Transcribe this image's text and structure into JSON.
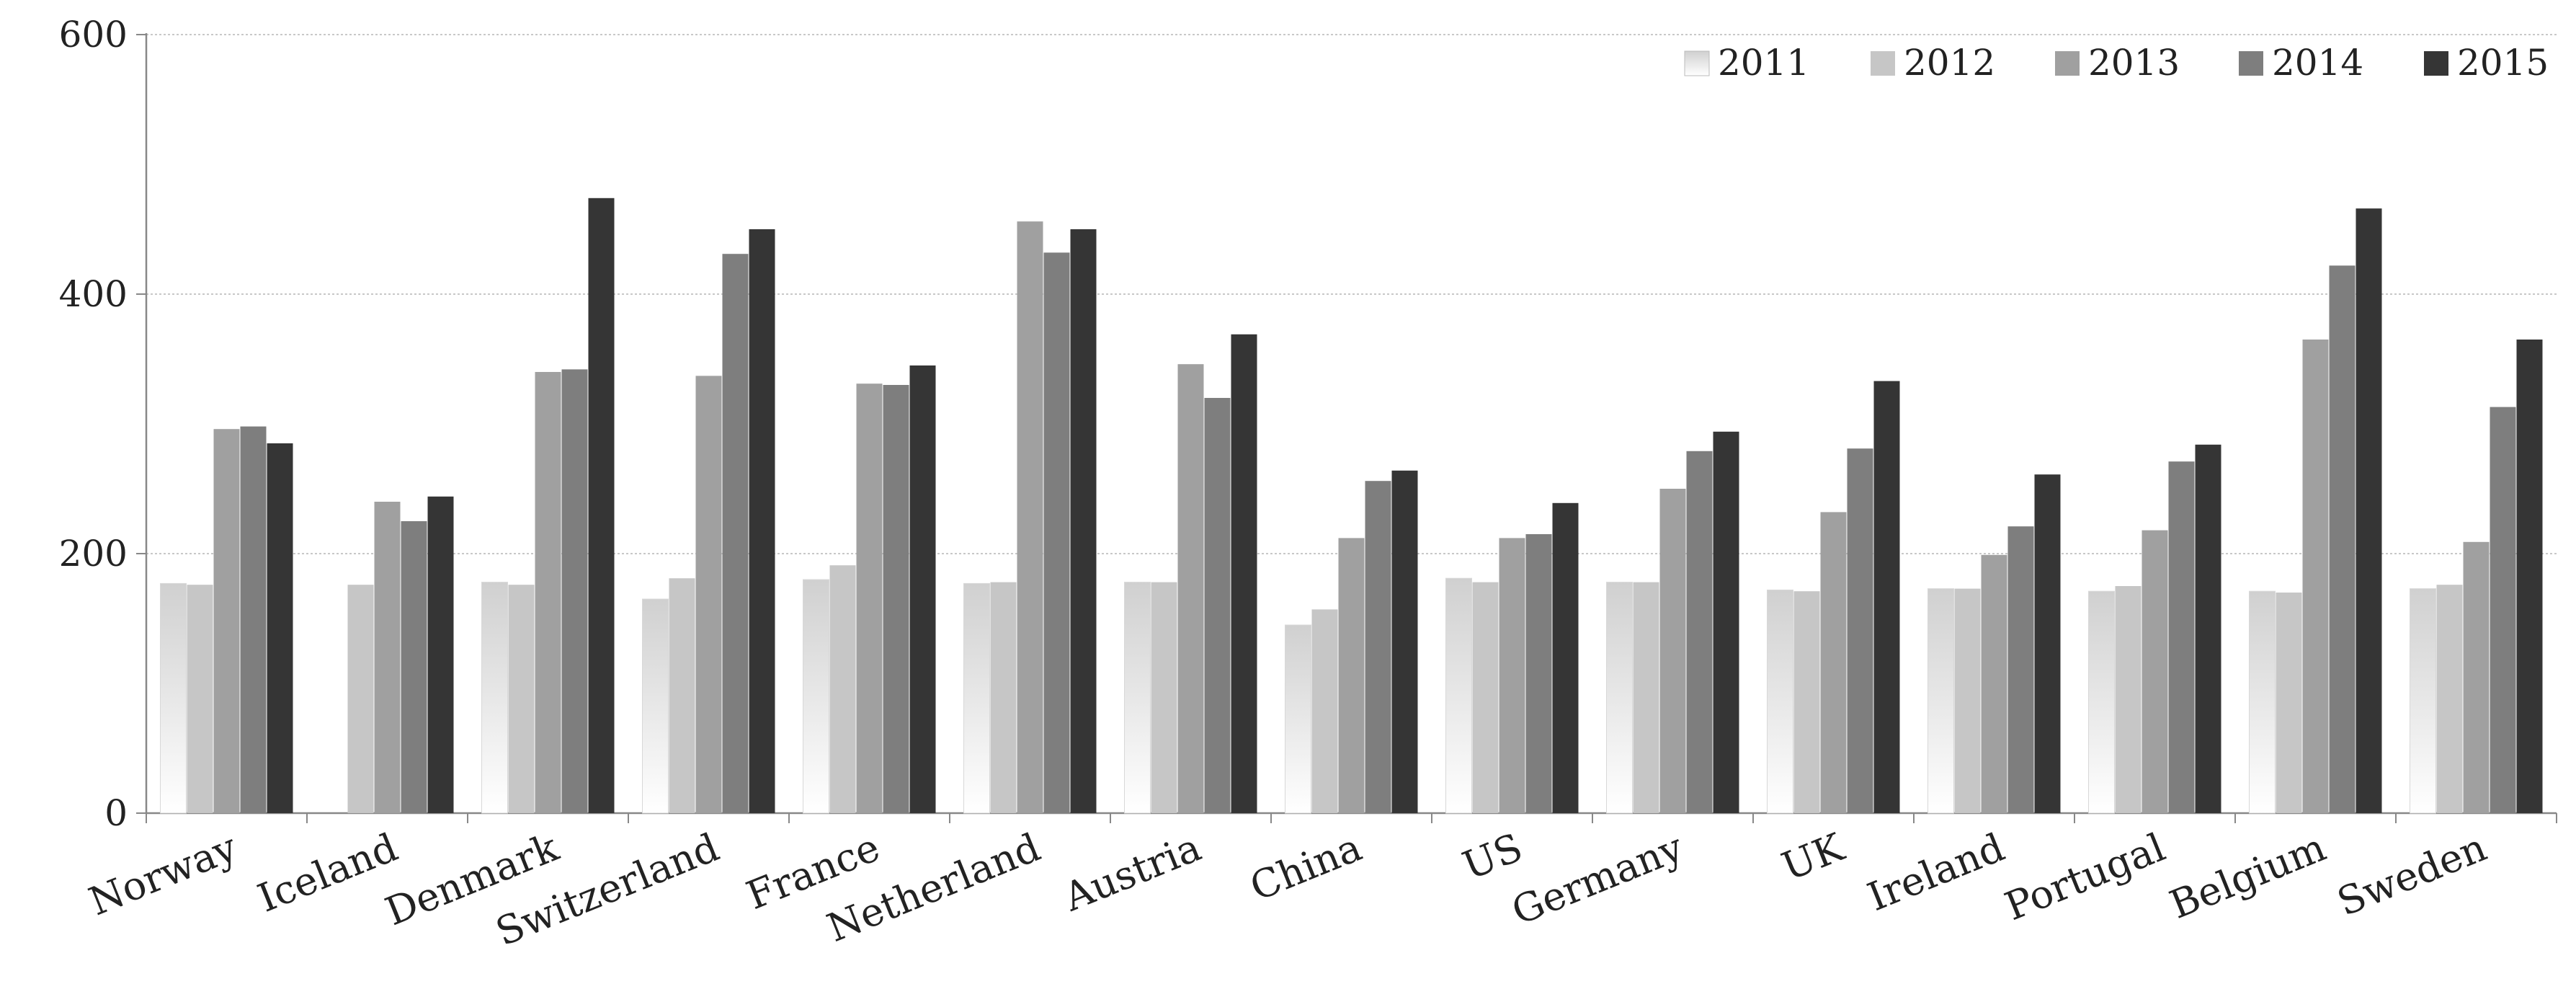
{
  "chart_data": {
    "type": "bar",
    "title": "",
    "xlabel": "",
    "ylabel": "",
    "ylim": [
      0,
      600
    ],
    "yticks": [
      0,
      200,
      400,
      600
    ],
    "grid": true,
    "legend_position": "top-right",
    "categories": [
      "Norway",
      "Iceland",
      "Denmark",
      "Switzerland",
      "France",
      "Netherland",
      "Austria",
      "China",
      "US",
      "Germany",
      "UK",
      "Ireland",
      "Portugal",
      "Belgium",
      "Sweden"
    ],
    "series": [
      {
        "name": "2011",
        "color": "#e4e4e4",
        "gradient": true,
        "values": [
          177,
          null,
          178,
          165,
          180,
          177,
          178,
          145,
          181,
          178,
          172,
          173,
          171,
          171,
          173
        ]
      },
      {
        "name": "2012",
        "color": "#c6c6c6",
        "values": [
          176,
          176,
          176,
          181,
          191,
          178,
          178,
          157,
          178,
          178,
          171,
          173,
          175,
          170,
          176
        ]
      },
      {
        "name": "2013",
        "color": "#a0a0a0",
        "values": [
          296,
          240,
          340,
          337,
          331,
          456,
          346,
          212,
          212,
          250,
          232,
          199,
          218,
          365,
          209
        ]
      },
      {
        "name": "2014",
        "color": "#7e7e7e",
        "values": [
          298,
          225,
          342,
          431,
          330,
          432,
          320,
          256,
          215,
          279,
          281,
          221,
          271,
          422,
          313
        ]
      },
      {
        "name": "2015",
        "color": "#353535",
        "values": [
          285,
          244,
          474,
          450,
          345,
          450,
          369,
          264,
          239,
          294,
          333,
          261,
          284,
          466,
          365
        ]
      }
    ]
  }
}
